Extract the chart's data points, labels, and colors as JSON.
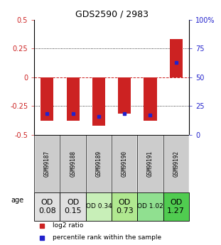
{
  "title": "GDS2590 / 2983",
  "samples": [
    "GSM99187",
    "GSM99188",
    "GSM99189",
    "GSM99190",
    "GSM99191",
    "GSM99192"
  ],
  "log2_ratios": [
    -0.38,
    -0.38,
    -0.42,
    -0.32,
    -0.38,
    0.33
  ],
  "percentile_ranks": [
    18,
    18,
    16,
    18,
    17,
    63
  ],
  "bar_color": "#cc2222",
  "pct_color": "#2222cc",
  "ylim": [
    -0.5,
    0.5
  ],
  "pct_ylim": [
    0,
    100
  ],
  "yticks_left": [
    -0.5,
    -0.25,
    0.0,
    0.25,
    0.5
  ],
  "yticks_right": [
    0,
    25,
    50,
    75,
    100
  ],
  "dotted_lines": [
    -0.25,
    0.25
  ],
  "zero_line": 0.0,
  "age_label": "age",
  "age_values": [
    "OD\n0.08",
    "OD\n0.15",
    "OD 0.34",
    "OD\n0.73",
    "OD 1.02",
    "OD\n1.27"
  ],
  "age_bg_colors": [
    "#e0e0e0",
    "#e0e0e0",
    "#c8efb8",
    "#b0e890",
    "#90e090",
    "#50cc50"
  ],
  "age_fontsizes": [
    8,
    8,
    6.5,
    8,
    6.5,
    8
  ],
  "legend_log2": "log2 ratio",
  "legend_pct": "percentile rank within the sample",
  "sample_bg": "#cccccc",
  "bar_width": 0.5
}
